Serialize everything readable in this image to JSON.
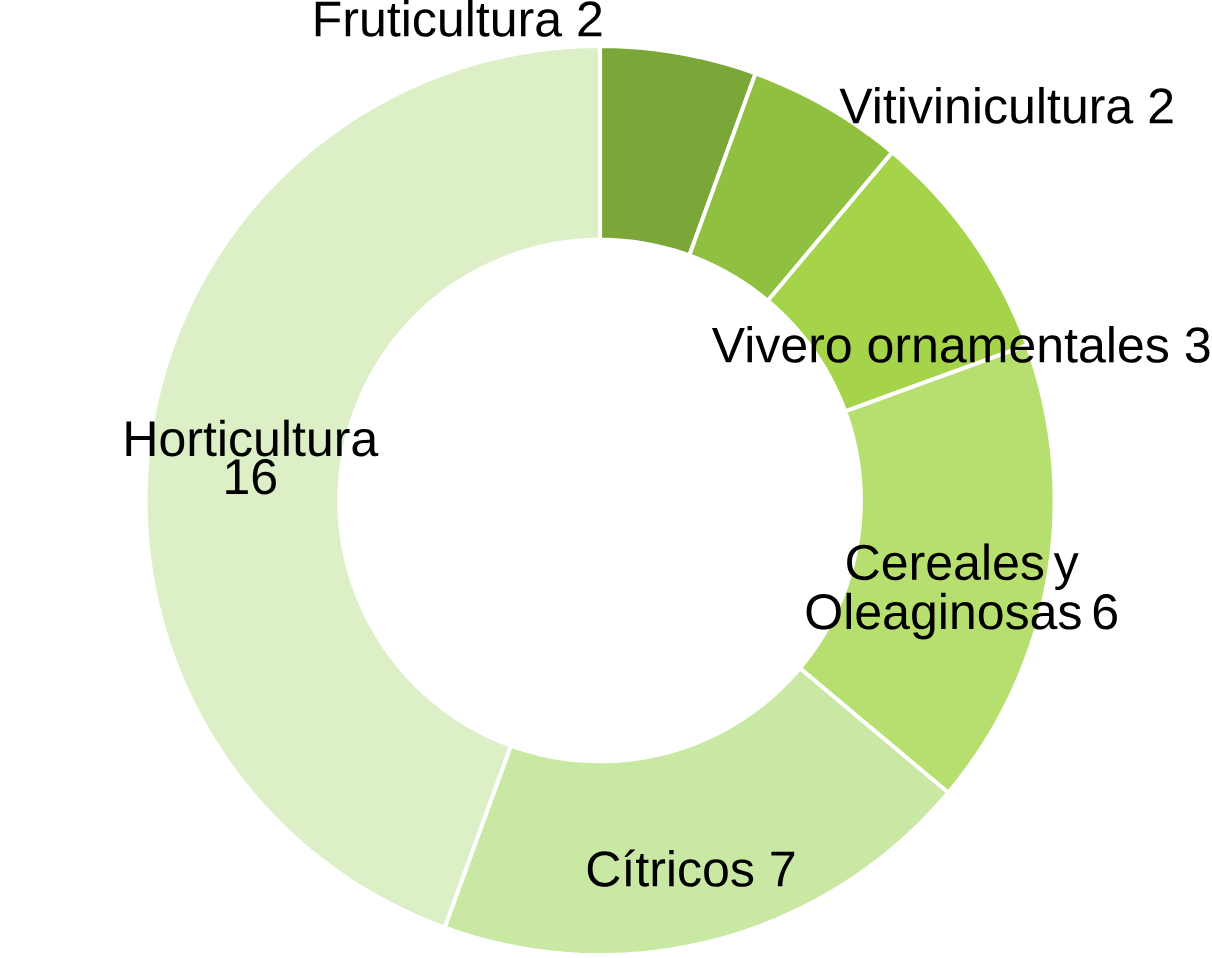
{
  "chart_data": {
    "type": "donut",
    "categories": [
      "Fruticultura",
      "Vitivinicultura",
      "Vivero ornamentales",
      "Cereales y Oleaginosas",
      "Cítricos",
      "Horticultura"
    ],
    "values": [
      2,
      2,
      3,
      6,
      7,
      16
    ],
    "colors": [
      "#7ba738",
      "#90c03f",
      "#a5d44b",
      "#b7df70",
      "#c9e8a3",
      "#dcefc7"
    ],
    "data_labels": true
  }
}
